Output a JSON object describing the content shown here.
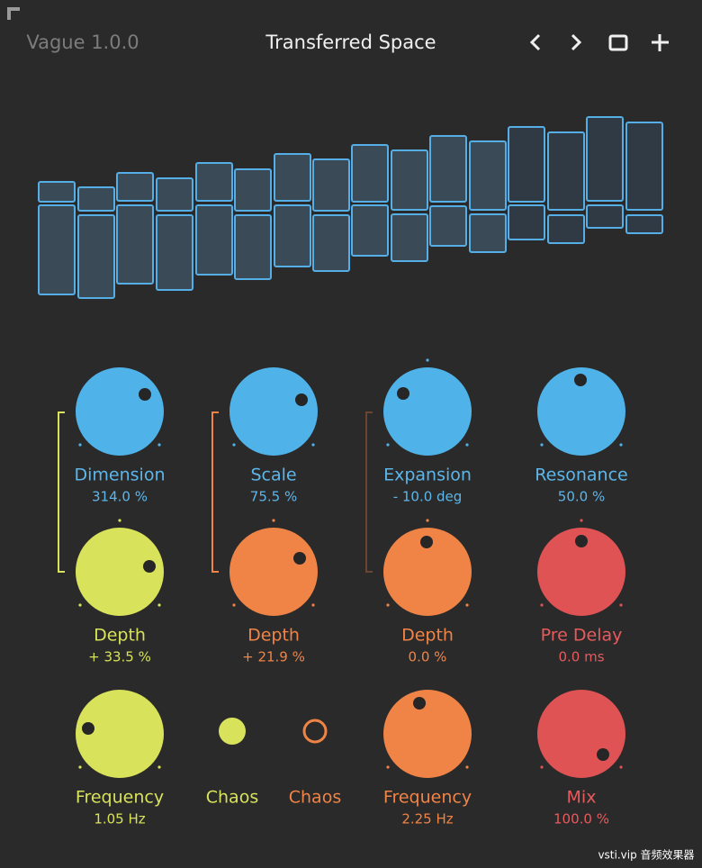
{
  "header": {
    "version": "Vague 1.0.0",
    "preset": "Transferred Space"
  },
  "controls": [
    {
      "label": "Dimension",
      "value": "314.0 %"
    },
    {
      "label": "Scale",
      "value": "75.5 %"
    },
    {
      "label": "Expansion",
      "value": "- 10.0 deg"
    },
    {
      "label": "Resonance",
      "value": "50.0 %"
    },
    {
      "label": "Depth",
      "value": "+ 33.5 %"
    },
    {
      "label": "Depth",
      "value": "+ 21.9 %"
    },
    {
      "label": "Depth",
      "value": "0.0 %"
    },
    {
      "label": "Pre Delay",
      "value": "0.0 ms"
    },
    {
      "label": "Frequency",
      "value": "1.05 Hz"
    },
    {
      "label": "Chaos"
    },
    {
      "label": "Chaos"
    },
    {
      "label": "Frequency",
      "value": "2.25 Hz"
    },
    {
      "label": "Mix",
      "value": "100.0 %"
    }
  ],
  "watermark": "vsti.vip 音频效果器"
}
